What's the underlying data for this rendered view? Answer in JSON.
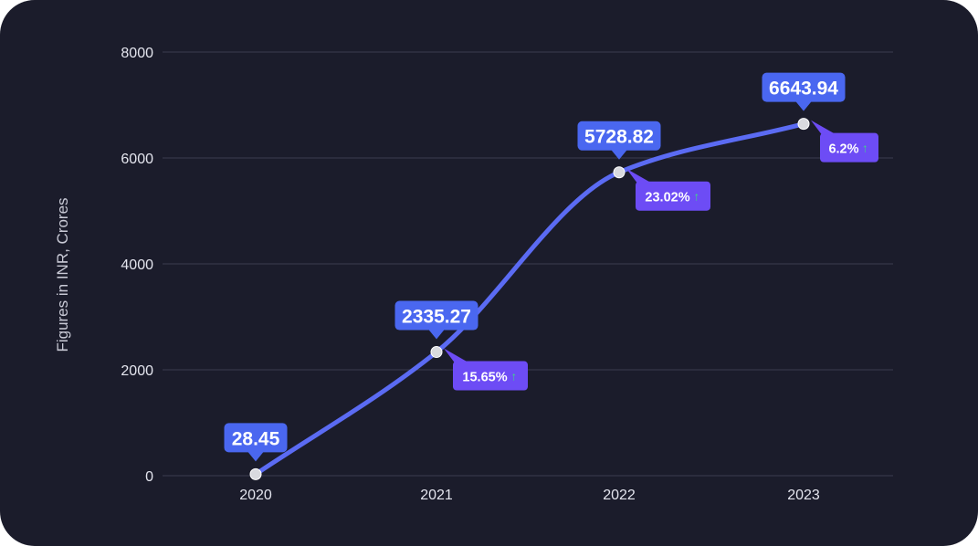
{
  "chart_data": {
    "type": "line",
    "ylabel": "Figures in INR, Crores",
    "xlabel": "",
    "categories": [
      "2020",
      "2021",
      "2022",
      "2023"
    ],
    "series": [
      {
        "values": [
          28.45,
          2335.27,
          5728.82,
          6643.94
        ]
      }
    ],
    "data_labels": [
      "28.45",
      "2335.27",
      "5728.82",
      "6643.94"
    ],
    "growth_labels": [
      "",
      "15.65%",
      "23.02%",
      "6.2%"
    ],
    "growth_arrow": "↑",
    "yticks": [
      "0",
      "2000",
      "4000",
      "6000",
      "8000"
    ],
    "ylim": [
      0,
      8000
    ],
    "grid": true,
    "colors": {
      "background": "#1b1c2b",
      "line": "#5b6bf3",
      "callout": "#4a67f0",
      "growth_badge": "#6d4cf5",
      "arrow": "#3fd48a",
      "grid": "#3b3d4f",
      "point": "#d9dadf"
    }
  }
}
